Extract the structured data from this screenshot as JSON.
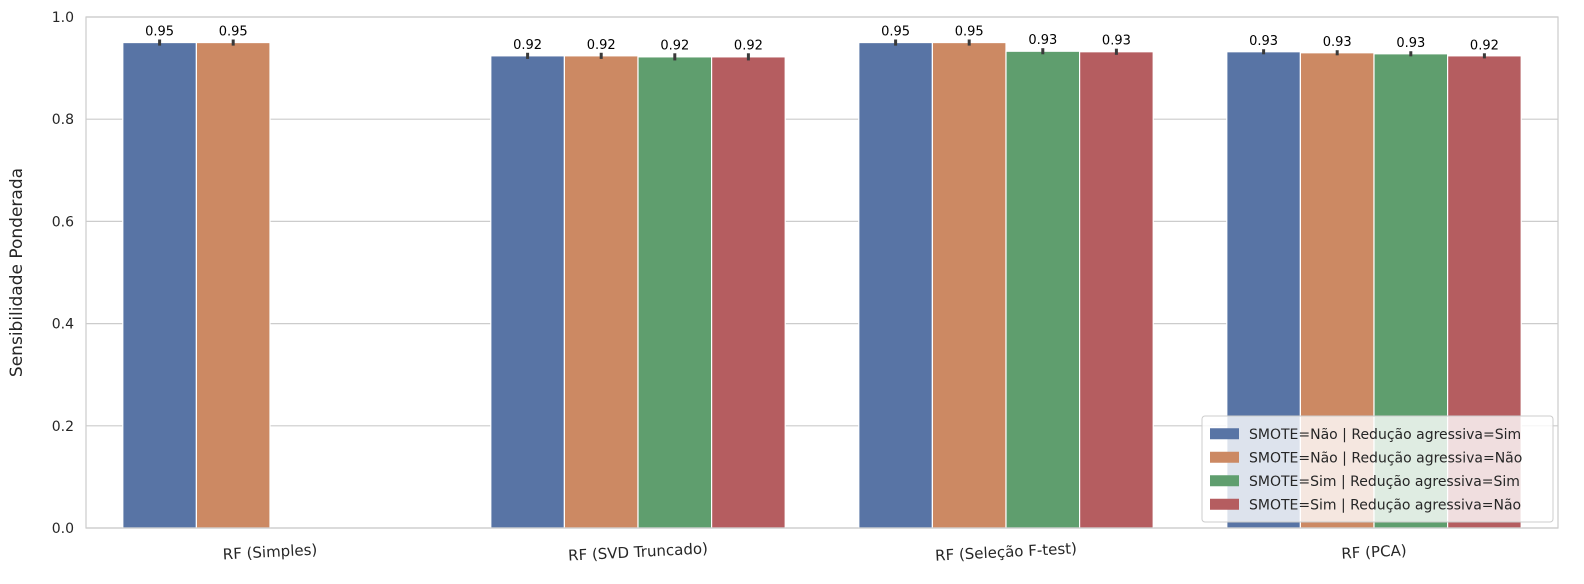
{
  "chart_data": {
    "type": "bar",
    "title": "",
    "xlabel": "",
    "ylabel": "Sensibilidade Ponderada",
    "ylim": [
      0,
      1.0
    ],
    "yticks": [
      "0.0",
      "0.2",
      "0.4",
      "0.6",
      "0.8",
      "1.0"
    ],
    "grid": true,
    "legend_position": "bottom-right",
    "categories": [
      "RF (Simples)",
      "RF (SVD Truncado)",
      "RF (Seleção F-test)",
      "RF (PCA)"
    ],
    "series": [
      {
        "name": "SMOTE=Não | Redução agressiva=Sim",
        "color": "#5874a5",
        "values": [
          0.95,
          0.924,
          0.95,
          0.932
        ],
        "errors": [
          0.006,
          0.006,
          0.006,
          0.005
        ],
        "labels": [
          "0.95",
          "0.92",
          "0.95",
          "0.93"
        ]
      },
      {
        "name": "SMOTE=Não | Redução agressiva=Não",
        "color": "#cc8963",
        "values": [
          0.95,
          0.924,
          0.95,
          0.93
        ],
        "errors": [
          0.006,
          0.006,
          0.006,
          0.005
        ],
        "labels": [
          "0.95",
          "0.92",
          "0.95",
          "0.93"
        ]
      },
      {
        "name": "SMOTE=Sim | Redução agressiva=Sim",
        "color": "#5f9e6e",
        "values": [
          null,
          0.922,
          0.933,
          0.928
        ],
        "errors": [
          null,
          0.007,
          0.006,
          0.005
        ],
        "labels": [
          null,
          "0.92",
          "0.93",
          "0.93"
        ]
      },
      {
        "name": "SMOTE=Sim | Redução agressiva=Não",
        "color": "#b55d60",
        "values": [
          null,
          0.922,
          0.932,
          0.924
        ],
        "errors": [
          null,
          0.007,
          0.006,
          0.005
        ],
        "labels": [
          null,
          "0.92",
          "0.93",
          "0.92"
        ]
      }
    ]
  }
}
